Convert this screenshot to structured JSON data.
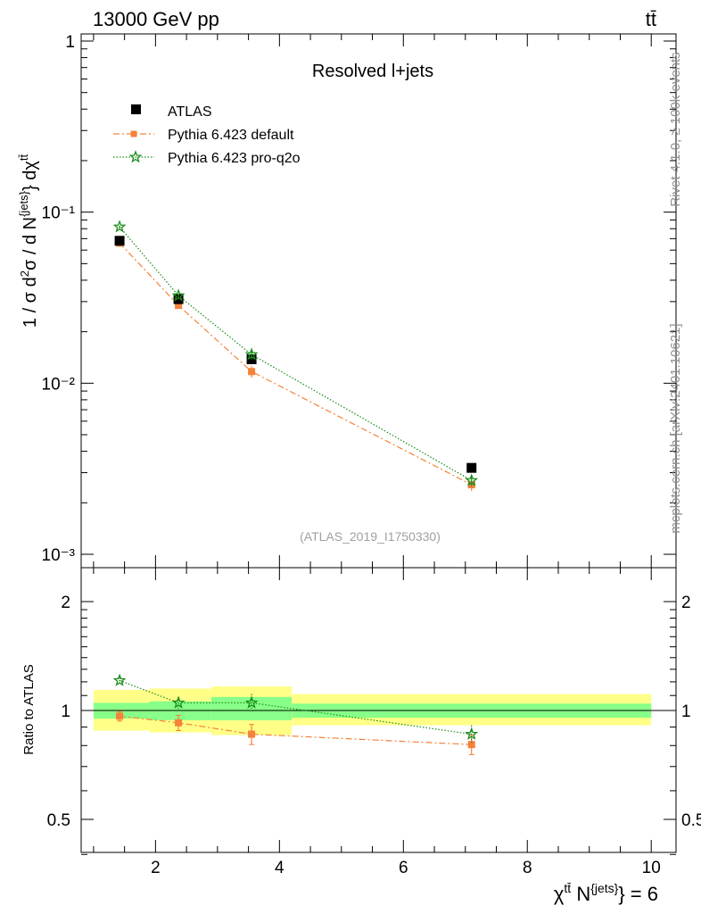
{
  "header": {
    "energy": "13000 GeV pp",
    "process": "tt̄"
  },
  "side_labels": {
    "rivet": "Rivet 4.1.0, ≥ 100k events",
    "mcplots": "mcplots.cern.ch [arXiv:2401.10621]"
  },
  "chart_data": [
    {
      "type": "line",
      "panel": "main",
      "title": "Resolved l+jets",
      "ylabel": "1 / σ d²σ / d N^{jets} dχ^{tt̄}",
      "yscale": "log",
      "ylim": [
        0.001,
        1.2
      ],
      "xlim": [
        0.8,
        10.4
      ],
      "y_tick_labels": [
        "1",
        "10⁻¹",
        "10⁻²",
        "10⁻³"
      ],
      "watermark": "(ATLAS_2019_I1750330)",
      "series": [
        {
          "name": "ATLAS",
          "color": "#000000",
          "marker": "square",
          "x": [
            1.42,
            2.37,
            3.55,
            7.1
          ],
          "y": [
            0.068,
            0.031,
            0.0138,
            0.0032
          ]
        },
        {
          "name": "Pythia 6.423 default",
          "color": "#f4823a",
          "marker": "square-small",
          "linestyle": "dashdot",
          "x": [
            1.42,
            2.37,
            3.55,
            7.1
          ],
          "y": [
            0.066,
            0.0285,
            0.0117,
            0.00255
          ],
          "yerr": [
            0.0015,
            0.0009,
            0.0009,
            0.0002
          ]
        },
        {
          "name": "Pythia 6.423 pro-q2o",
          "color": "#1a8c1a",
          "marker": "star",
          "linestyle": "dotted",
          "x": [
            1.42,
            2.37,
            3.55,
            7.1
          ],
          "y": [
            0.082,
            0.0325,
            0.0147,
            0.0027
          ],
          "yerr": [
            0.0015,
            0.0009,
            0.0009,
            0.0002
          ]
        }
      ]
    },
    {
      "type": "line",
      "panel": "ratio",
      "ylabel": "Ratio to ATLAS",
      "xlabel": "χ^{tt̄} N^{jets} = 6",
      "ylim": [
        0.4,
        2.5
      ],
      "xlim": [
        0.8,
        10.4
      ],
      "x_ticks": [
        2,
        4,
        6,
        8,
        10
      ],
      "x_tick_labels": [
        "2",
        "4",
        "6",
        "8",
        "10"
      ],
      "y_ticks": [
        0.5,
        1,
        2
      ],
      "y_tick_labels": [
        "0.5",
        "1",
        "2"
      ],
      "bands": [
        {
          "x0": 1.0,
          "x1": 1.9,
          "stat_lo": 0.95,
          "stat_hi": 1.05,
          "tot_lo": 0.88,
          "tot_hi": 1.14
        },
        {
          "x0": 1.9,
          "x1": 2.9,
          "stat_lo": 0.94,
          "stat_hi": 1.06,
          "tot_lo": 0.87,
          "tot_hi": 1.15
        },
        {
          "x0": 2.9,
          "x1": 4.2,
          "stat_lo": 0.94,
          "stat_hi": 1.09,
          "tot_lo": 0.855,
          "tot_hi": 1.165
        },
        {
          "x0": 4.2,
          "x1": 10.0,
          "stat_lo": 0.955,
          "stat_hi": 1.045,
          "tot_lo": 0.91,
          "tot_hi": 1.11
        }
      ],
      "series": [
        {
          "name": "Pythia 6.423 default",
          "color": "#f4823a",
          "x": [
            1.42,
            2.37,
            3.55,
            7.1
          ],
          "y": [
            0.965,
            0.925,
            0.86,
            0.805
          ],
          "yerr": [
            0.03,
            0.045,
            0.055,
            0.05
          ]
        },
        {
          "name": "Pythia 6.423 pro-q2o",
          "color": "#1a8c1a",
          "x": [
            1.42,
            2.37,
            3.55,
            7.1
          ],
          "y": [
            1.21,
            1.05,
            1.05,
            0.86
          ],
          "yerr": [
            0.025,
            0.04,
            0.06,
            0.05
          ]
        }
      ]
    }
  ]
}
